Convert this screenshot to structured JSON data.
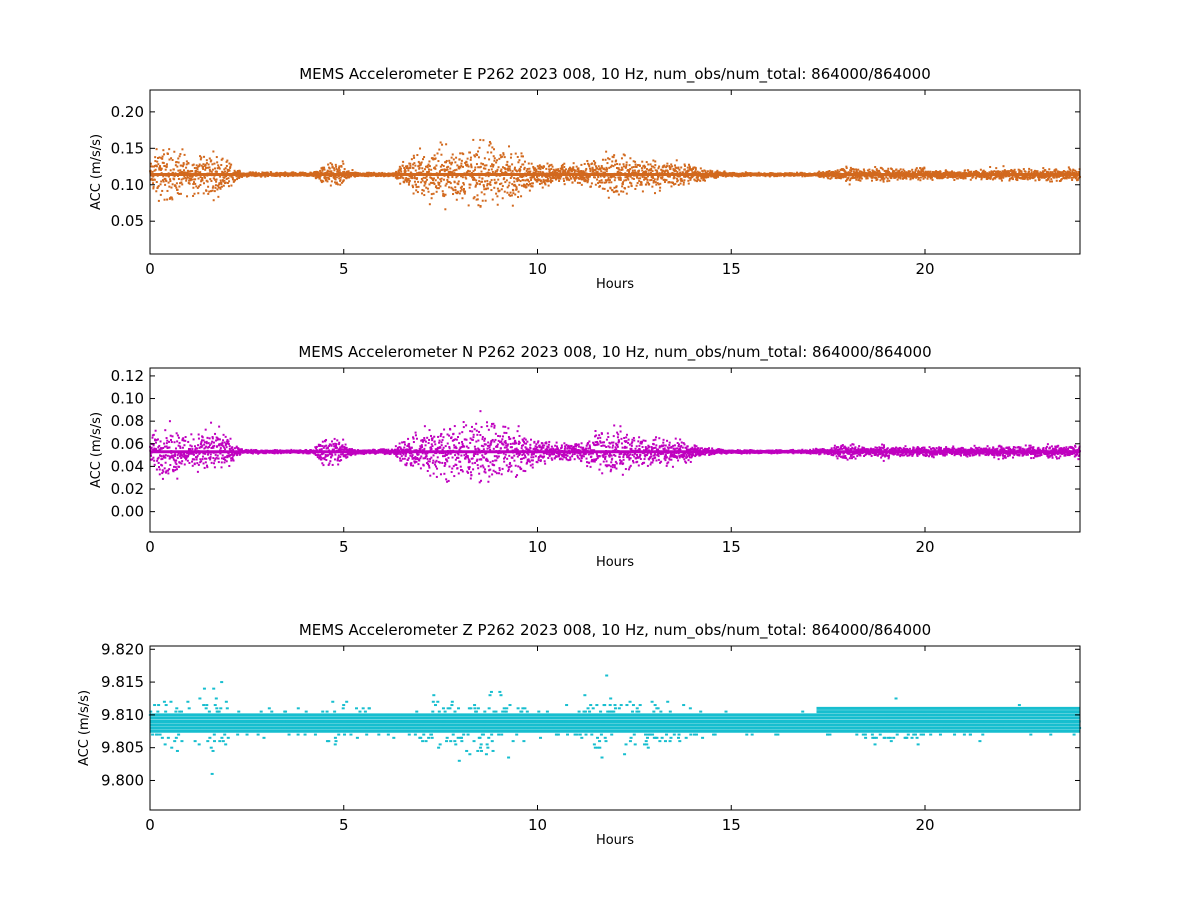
{
  "chart_data": [
    {
      "type": "scatter",
      "title": "MEMS Accelerometer E P262 2023 008, 10 Hz, num_obs/num_total: 864000/864000",
      "xlabel": "Hours",
      "ylabel": "ACC (m/s/s)",
      "xlim": [
        0,
        24
      ],
      "ylim": [
        0.005,
        0.23
      ],
      "xticks": [
        0,
        5,
        10,
        15,
        20
      ],
      "yticks": [
        0.05,
        0.1,
        0.15,
        0.2
      ],
      "ytick_labels": [
        "0.05",
        "0.10",
        "0.15",
        "0.20"
      ],
      "color": "#d2691e",
      "baseline": 0.114,
      "envelope": {
        "x": [
          0,
          0.1,
          0.3,
          0.7,
          1.0,
          1.2,
          1.4,
          1.7,
          2.0,
          2.2,
          2.4,
          4.2,
          4.5,
          4.9,
          5.2,
          5.4,
          6.3,
          6.6,
          7.0,
          7.5,
          8.0,
          8.5,
          8.8,
          9.2,
          9.6,
          10.0,
          10.4,
          10.8,
          11.2,
          11.6,
          12.0,
          12.5,
          13.0,
          13.5,
          14.0,
          14.4,
          15.0,
          16.0,
          17.0,
          17.5,
          18.0,
          18.3,
          18.6,
          18.9,
          19.1,
          19.4,
          19.7,
          20.0,
          20.5,
          21.0,
          21.5,
          22.0,
          22.5,
          23.0,
          23.5,
          24.0
        ],
        "spread": [
          0.015,
          0.045,
          0.05,
          0.05,
          0.035,
          0.035,
          0.045,
          0.04,
          0.03,
          0.01,
          0.004,
          0.004,
          0.02,
          0.025,
          0.008,
          0.003,
          0.004,
          0.03,
          0.05,
          0.055,
          0.055,
          0.06,
          0.06,
          0.055,
          0.04,
          0.025,
          0.02,
          0.018,
          0.018,
          0.04,
          0.04,
          0.035,
          0.03,
          0.025,
          0.02,
          0.008,
          0.004,
          0.003,
          0.003,
          0.006,
          0.015,
          0.012,
          0.008,
          0.018,
          0.012,
          0.01,
          0.01,
          0.012,
          0.008,
          0.01,
          0.01,
          0.012,
          0.01,
          0.013,
          0.012,
          0.012
        ]
      }
    },
    {
      "type": "scatter",
      "title": "MEMS Accelerometer N P262 2023 008, 10 Hz, num_obs/num_total: 864000/864000",
      "xlabel": "Hours",
      "ylabel": "ACC (m/s/s)",
      "xlim": [
        0,
        24
      ],
      "ylim": [
        -0.018,
        0.127
      ],
      "xticks": [
        0,
        5,
        10,
        15,
        20
      ],
      "yticks": [
        0.0,
        0.02,
        0.04,
        0.06,
        0.08,
        0.1,
        0.12
      ],
      "ytick_labels": [
        "0.00",
        "0.02",
        "0.04",
        "0.06",
        "0.08",
        "0.10",
        "0.12"
      ],
      "color": "#bf00bf",
      "baseline": 0.053,
      "envelope": {
        "x": [
          0,
          0.1,
          0.3,
          0.7,
          1.0,
          1.2,
          1.4,
          1.7,
          2.0,
          2.2,
          2.4,
          4.2,
          4.5,
          4.9,
          5.2,
          5.4,
          6.3,
          6.6,
          7.0,
          7.5,
          8.0,
          8.5,
          8.8,
          9.2,
          9.6,
          10.0,
          10.4,
          10.8,
          11.2,
          11.6,
          12.0,
          12.5,
          13.0,
          13.5,
          14.0,
          14.4,
          15.0,
          16.0,
          17.0,
          17.5,
          18.0,
          18.3,
          18.6,
          18.9,
          19.1,
          19.4,
          19.7,
          20.0,
          20.5,
          21.0,
          21.5,
          22.0,
          22.5,
          23.0,
          23.5,
          24.0
        ],
        "spread": [
          0.01,
          0.025,
          0.03,
          0.03,
          0.02,
          0.02,
          0.03,
          0.028,
          0.02,
          0.008,
          0.002,
          0.002,
          0.018,
          0.02,
          0.006,
          0.002,
          0.003,
          0.02,
          0.03,
          0.032,
          0.035,
          0.04,
          0.04,
          0.035,
          0.025,
          0.015,
          0.012,
          0.01,
          0.012,
          0.03,
          0.03,
          0.02,
          0.018,
          0.015,
          0.012,
          0.004,
          0.002,
          0.002,
          0.002,
          0.005,
          0.01,
          0.008,
          0.005,
          0.01,
          0.007,
          0.006,
          0.006,
          0.007,
          0.005,
          0.006,
          0.006,
          0.008,
          0.006,
          0.008,
          0.007,
          0.007
        ]
      }
    },
    {
      "type": "scatter",
      "title": "MEMS Accelerometer Z P262 2023 008, 10 Hz, num_obs/num_total: 864000/864000",
      "xlabel": "Hours",
      "ylabel": "ACC (m/s/s)",
      "xlim": [
        0,
        24
      ],
      "ylim": [
        9.7955,
        9.8205
      ],
      "xticks": [
        0,
        5,
        10,
        15,
        20
      ],
      "yticks": [
        9.8,
        9.805,
        9.81,
        9.815,
        9.82
      ],
      "ytick_labels": [
        "9.800",
        "9.805",
        "9.810",
        "9.815",
        "9.820"
      ],
      "color": "#17becf",
      "quantization_step": 0.0005,
      "core_levels": [
        9.8075,
        9.808,
        9.8085,
        9.809,
        9.8095,
        9.81
      ],
      "late_core_levels": [
        9.8075,
        9.808,
        9.8085,
        9.809,
        9.8095,
        9.81,
        9.8105,
        9.811
      ],
      "late_shift_hour": 17.2,
      "envelope": {
        "x": [
          0,
          0.3,
          0.7,
          1.0,
          1.2,
          1.7,
          2.0,
          2.3,
          4.4,
          4.8,
          5.2,
          6.8,
          7.5,
          8.0,
          8.6,
          9.0,
          9.5,
          10.0,
          11.0,
          11.5,
          12.0,
          12.6,
          13.0,
          13.7,
          14.1,
          15.0,
          17.0,
          18.0,
          19.0,
          20.0,
          21.0,
          22.0,
          23.0,
          24.0
        ],
        "spread": [
          0.004,
          0.006,
          0.006,
          0.005,
          0.005,
          0.009,
          0.005,
          0.003,
          0.003,
          0.006,
          0.003,
          0.003,
          0.007,
          0.007,
          0.009,
          0.008,
          0.006,
          0.003,
          0.003,
          0.008,
          0.007,
          0.005,
          0.005,
          0.004,
          0.004,
          0.002,
          0.002,
          0.003,
          0.004,
          0.004,
          0.003,
          0.003,
          0.003,
          0.002
        ]
      }
    }
  ]
}
